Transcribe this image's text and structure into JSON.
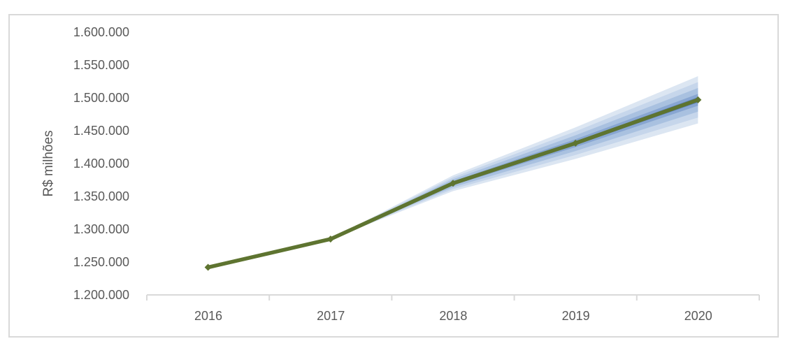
{
  "chart_data": {
    "type": "line",
    "title": "",
    "xlabel": "",
    "ylabel": "R$ milhões",
    "grid": false,
    "legend": "none",
    "ylim": [
      1200000,
      1600000
    ],
    "y_ticks": {
      "labels": [
        "1.600.000",
        "1.550.000",
        "1.500.000",
        "1.450.000",
        "1.400.000",
        "1.350.000",
        "1.300.000",
        "1.250.000",
        "1.200.000"
      ],
      "values": [
        1600000,
        1550000,
        1500000,
        1450000,
        1400000,
        1350000,
        1300000,
        1250000,
        1200000
      ]
    },
    "x_categories": [
      "2016",
      "2017",
      "2018",
      "2019",
      "2020"
    ],
    "series": [
      {
        "name": "central-line",
        "values": [
          1242000,
          1285000,
          1370000,
          1431000,
          1497000
        ],
        "color": "#5e7430",
        "marker": "diamond"
      }
    ],
    "fan": {
      "start_category": "2017",
      "note": "confidence bands widen linearly from 2017 to 2020",
      "bands": [
        {
          "offset_at_end": 36000,
          "color": "#dce6f2"
        },
        {
          "offset_at_end": 27000,
          "color": "#c6d6eb"
        },
        {
          "offset_at_end": 18000,
          "color": "#a9c1e0"
        },
        {
          "offset_at_end": 9000,
          "color": "#88a6d2"
        },
        {
          "offset_at_end": 4000,
          "color": "#5b80bd"
        }
      ]
    },
    "axis_color": "#d9d9d9",
    "text_color": "#595959",
    "background": "#ffffff"
  }
}
